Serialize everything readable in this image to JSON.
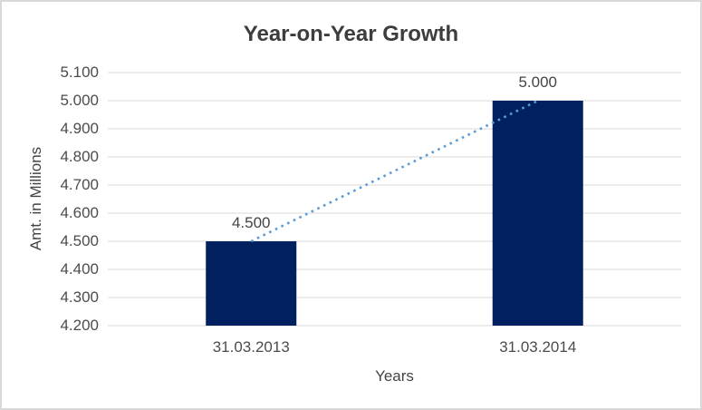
{
  "chart_data": {
    "type": "bar",
    "title": "Year-on-Year Growth",
    "xlabel": "Years",
    "ylabel": "Amt. in Millions",
    "categories": [
      "31.03.2013",
      "31.03.2014"
    ],
    "values": [
      4.5,
      5.0
    ],
    "data_labels": [
      "4.500",
      "5.000"
    ],
    "y_tick_labels": [
      "5.100",
      "5.000",
      "4.900",
      "4.800",
      "4.700",
      "4.600",
      "4.500",
      "4.400",
      "4.300",
      "4.200"
    ],
    "ylim": [
      4.2,
      5.1
    ],
    "grid": true,
    "legend": false,
    "trendline": {
      "style": "dotted",
      "from_value": 4.5,
      "to_value": 5.0
    },
    "colors": {
      "bar": "#002060",
      "trendline": "#5B9BD5",
      "gridline": "#D9D9D9",
      "tick_text": "#4c4c4c",
      "label_text": "#444444",
      "title_text": "#3d3d3d",
      "background": "#FFFFFF",
      "border": "#D9D9D9"
    }
  }
}
